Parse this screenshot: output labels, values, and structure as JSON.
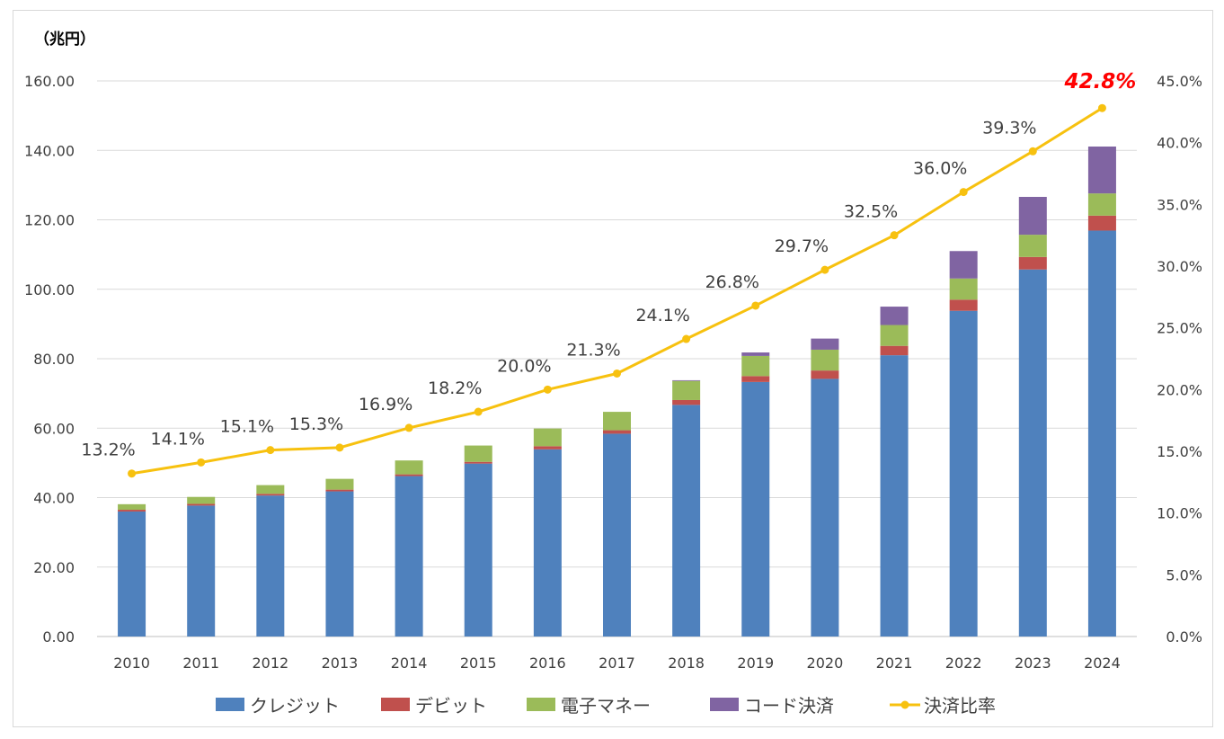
{
  "chart_data": {
    "type": "bar",
    "stacked": true,
    "ylabel": "（兆円）",
    "ylim": [
      0,
      160
    ],
    "y2lim": [
      0,
      45
    ],
    "ytick_labels": [
      "0.00",
      "20.00",
      "40.00",
      "60.00",
      "80.00",
      "100.00",
      "120.00",
      "140.00",
      "160.00"
    ],
    "y2tick_labels": [
      "0.0%",
      "5.0%",
      "10.0%",
      "15.0%",
      "20.0%",
      "25.0%",
      "30.0%",
      "35.0%",
      "40.0%",
      "45.0%"
    ],
    "grid": true,
    "legend_position": "bottom",
    "categories": [
      "2010",
      "2011",
      "2012",
      "2013",
      "2014",
      "2015",
      "2016",
      "2017",
      "2018",
      "2019",
      "2020",
      "2021",
      "2022",
      "2023",
      "2024"
    ],
    "series": [
      {
        "name": "クレジット",
        "type": "bar",
        "axis": "left",
        "color": "#4f81bd",
        "values": [
          36.0,
          37.7,
          40.6,
          41.8,
          46.2,
          49.8,
          53.9,
          58.4,
          66.7,
          73.3,
          74.2,
          81.0,
          93.8,
          105.7,
          116.9
        ]
      },
      {
        "name": "デビット",
        "type": "bar",
        "axis": "left",
        "color": "#c0504d",
        "values": [
          0.5,
          0.5,
          0.5,
          0.5,
          0.5,
          0.5,
          0.9,
          1.0,
          1.4,
          1.7,
          2.4,
          2.7,
          3.2,
          3.6,
          4.3
        ]
      },
      {
        "name": "電子マネー",
        "type": "bar",
        "axis": "left",
        "color": "#9bbb59",
        "values": [
          1.6,
          2.0,
          2.5,
          3.1,
          4.0,
          4.7,
          5.1,
          5.3,
          5.5,
          5.8,
          6.0,
          6.0,
          6.1,
          6.4,
          6.4
        ]
      },
      {
        "name": "コード決済",
        "type": "bar",
        "axis": "left",
        "color": "#8064a2",
        "values": [
          0,
          0,
          0,
          0,
          0,
          0,
          0,
          0,
          0.2,
          1.0,
          3.2,
          5.3,
          7.9,
          10.9,
          13.5
        ]
      },
      {
        "name": "決済比率",
        "type": "line",
        "axis": "right",
        "color": "#f7c10f",
        "values": [
          13.2,
          14.1,
          15.1,
          15.3,
          16.9,
          18.2,
          20.0,
          21.3,
          24.1,
          26.8,
          29.7,
          32.5,
          36.0,
          39.3,
          42.8
        ],
        "labels": [
          "13.2%",
          "14.1%",
          "15.1%",
          "15.3%",
          "16.9%",
          "18.2%",
          "20.0%",
          "21.3%",
          "24.1%",
          "26.8%",
          "29.7%",
          "32.5%",
          "36.0%",
          "39.3%",
          "42.8%"
        ],
        "highlight_color": "#ff0000"
      }
    ]
  }
}
